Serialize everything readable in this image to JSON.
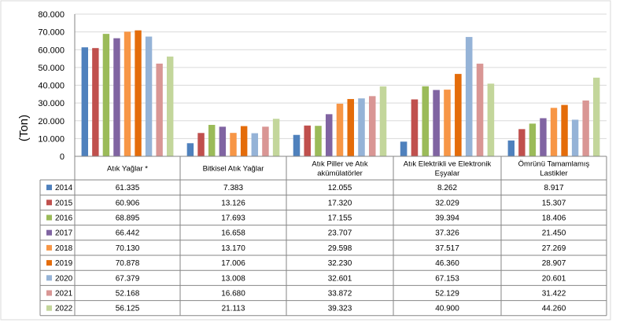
{
  "chart_data": {
    "type": "bar",
    "ylabel": "(Ton)",
    "ylim": [
      0,
      80000
    ],
    "yticks": [
      "0",
      "10.000",
      "20.000",
      "30.000",
      "40.000",
      "50.000",
      "60.000",
      "70.000",
      "80.000"
    ],
    "grid": true,
    "categories": [
      [
        "Atık Yağlar *"
      ],
      [
        "Bitkisel Atık Yağlar"
      ],
      [
        "Atık Piller  ve Atık",
        "akümülatörler"
      ],
      [
        "Atık Elektrikli ve Elektronik",
        "Eşyalar"
      ],
      [
        "Ömrünü Tamamlamış",
        "Lastikler"
      ]
    ],
    "series": [
      {
        "name": "2014",
        "color": "#4f81bd",
        "values": [
          61335,
          7383,
          12055,
          8262,
          8917
        ],
        "labels": [
          "61.335",
          "7.383",
          "12.055",
          "8.262",
          "8.917"
        ]
      },
      {
        "name": "2015",
        "color": "#c0504d",
        "values": [
          60906,
          13126,
          17320,
          32029,
          15307
        ],
        "labels": [
          "60.906",
          "13.126",
          "17.320",
          "32.029",
          "15.307"
        ]
      },
      {
        "name": "2016",
        "color": "#9bbb59",
        "values": [
          68895,
          17693,
          17155,
          39394,
          18406
        ],
        "labels": [
          "68.895",
          "17.693",
          "17.155",
          "39.394",
          "18.406"
        ]
      },
      {
        "name": "2017",
        "color": "#8064a2",
        "values": [
          66442,
          16658,
          23707,
          37326,
          21450
        ],
        "labels": [
          "66.442",
          "16.658",
          "23.707",
          "37.326",
          "21.450"
        ]
      },
      {
        "name": "2018",
        "color": "#f79646",
        "values": [
          70130,
          13170,
          29598,
          37517,
          27269
        ],
        "labels": [
          "70.130",
          "13.170",
          "29.598",
          "37.517",
          "27.269"
        ]
      },
      {
        "name": "2019",
        "color": "#e46c0a",
        "values": [
          70878,
          17006,
          32230,
          46360,
          28907
        ],
        "labels": [
          "70.878",
          "17.006",
          "32.230",
          "46.360",
          "28.907"
        ]
      },
      {
        "name": "2020",
        "color": "#95b3d7",
        "values": [
          67379,
          13008,
          32601,
          67153,
          20601
        ],
        "labels": [
          "67.379",
          "13.008",
          "32.601",
          "67.153",
          "20.601"
        ]
      },
      {
        "name": "2021",
        "color": "#d99694",
        "values": [
          52168,
          16680,
          33872,
          52129,
          31422
        ],
        "labels": [
          "52.168",
          "16.680",
          "33.872",
          "52.129",
          "31.422"
        ]
      },
      {
        "name": "2022",
        "color": "#c3d69b",
        "values": [
          56125,
          21113,
          39323,
          40900,
          44260
        ],
        "labels": [
          "56.125",
          "21.113",
          "39.323",
          "40.900",
          "44.260"
        ]
      }
    ]
  }
}
